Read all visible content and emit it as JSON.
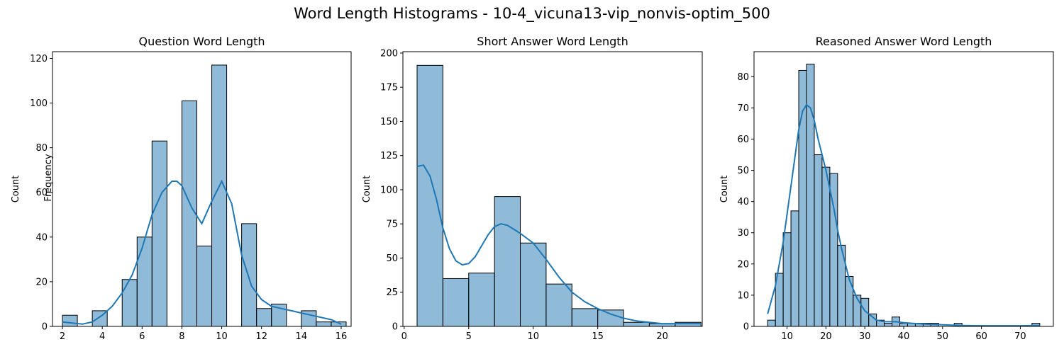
{
  "figure_title": "Word Length Histograms - 10-4_vicuna13-vip_nonvis-optim_500",
  "stray_label": "Frequency",
  "chart_data": [
    {
      "type": "bar",
      "title": "Question Word Length",
      "xlabel": "",
      "ylabel": "Count",
      "xlim": [
        1.5,
        16.5
      ],
      "ylim": [
        0,
        123
      ],
      "xticks": [
        2,
        4,
        6,
        8,
        10,
        12,
        14,
        16
      ],
      "yticks": [
        0,
        20,
        40,
        60,
        80,
        100,
        120
      ],
      "bins": [
        {
          "x0": 2.0,
          "x1": 2.75,
          "count": 5
        },
        {
          "x0": 2.75,
          "x1": 3.5,
          "count": 0
        },
        {
          "x0": 3.5,
          "x1": 4.25,
          "count": 7
        },
        {
          "x0": 4.25,
          "x1": 5.0,
          "count": 0
        },
        {
          "x0": 5.0,
          "x1": 5.75,
          "count": 21
        },
        {
          "x0": 5.75,
          "x1": 6.5,
          "count": 40
        },
        {
          "x0": 6.5,
          "x1": 7.25,
          "count": 83
        },
        {
          "x0": 7.25,
          "x1": 8.0,
          "count": 0
        },
        {
          "x0": 8.0,
          "x1": 8.75,
          "count": 101
        },
        {
          "x0": 8.75,
          "x1": 9.5,
          "count": 36
        },
        {
          "x0": 9.5,
          "x1": 10.25,
          "count": 117
        },
        {
          "x0": 10.25,
          "x1": 11.0,
          "count": 0
        },
        {
          "x0": 11.0,
          "x1": 11.75,
          "count": 46
        },
        {
          "x0": 11.75,
          "x1": 12.5,
          "count": 8
        },
        {
          "x0": 12.5,
          "x1": 13.25,
          "count": 10
        },
        {
          "x0": 13.25,
          "x1": 14.0,
          "count": 0
        },
        {
          "x0": 14.0,
          "x1": 14.75,
          "count": 7
        },
        {
          "x0": 14.75,
          "x1": 15.5,
          "count": 2
        },
        {
          "x0": 15.5,
          "x1": 16.25,
          "count": 2
        }
      ],
      "kde": {
        "x": [
          2,
          2.5,
          3,
          3.5,
          4,
          4.5,
          5,
          5.5,
          6,
          6.5,
          7,
          7.5,
          7.75,
          8,
          8.5,
          9,
          9.5,
          10,
          10.5,
          11,
          11.5,
          12,
          12.5,
          13,
          13.5,
          14,
          14.5,
          15,
          15.5,
          16
        ],
        "y": [
          2,
          1.5,
          1,
          2,
          5,
          9,
          15,
          23,
          35,
          50,
          60,
          65,
          65,
          63,
          53,
          46,
          56,
          65,
          55,
          32,
          18,
          12,
          9,
          8,
          7,
          6,
          5,
          4,
          3,
          1
        ]
      }
    },
    {
      "type": "bar",
      "title": "Short Answer Word Length",
      "xlabel": "",
      "ylabel": "Count",
      "xlim": [
        -0.1,
        23.1
      ],
      "ylim": [
        0,
        201
      ],
      "xticks": [
        0,
        5,
        10,
        15,
        20
      ],
      "yticks": [
        0,
        25,
        50,
        75,
        100,
        125,
        150,
        175,
        200
      ],
      "bins": [
        {
          "x0": 1,
          "x1": 3,
          "count": 191
        },
        {
          "x0": 3,
          "x1": 5,
          "count": 35
        },
        {
          "x0": 5,
          "x1": 7,
          "count": 39
        },
        {
          "x0": 7,
          "x1": 9,
          "count": 95
        },
        {
          "x0": 9,
          "x1": 11,
          "count": 61
        },
        {
          "x0": 11,
          "x1": 13,
          "count": 31
        },
        {
          "x0": 13,
          "x1": 15,
          "count": 13
        },
        {
          "x0": 15,
          "x1": 17,
          "count": 12
        },
        {
          "x0": 17,
          "x1": 19,
          "count": 3
        },
        {
          "x0": 19,
          "x1": 21,
          "count": 2
        },
        {
          "x0": 21,
          "x1": 23,
          "count": 3
        }
      ],
      "kde": {
        "x": [
          1,
          1.5,
          2,
          2.5,
          3,
          3.5,
          4,
          4.5,
          5,
          5.5,
          6,
          6.5,
          7,
          7.5,
          8,
          8.5,
          9,
          10,
          11,
          12,
          13,
          14,
          15,
          16,
          17,
          18,
          19,
          20,
          21,
          22,
          23
        ],
        "y": [
          117,
          118,
          110,
          93,
          72,
          57,
          48,
          45,
          46,
          51,
          59,
          67,
          73,
          75,
          74,
          71,
          68,
          61,
          49,
          36,
          25,
          18,
          13,
          9,
          6,
          4,
          3,
          2,
          2,
          2,
          2
        ]
      }
    },
    {
      "type": "bar",
      "title": "Reasoned Answer Word Length",
      "xlabel": "",
      "ylabel": "Count",
      "xlim": [
        1.5,
        78.5
      ],
      "ylim": [
        0,
        88
      ],
      "xticks": [
        10,
        20,
        30,
        40,
        50,
        60,
        70
      ],
      "yticks": [
        0,
        10,
        20,
        30,
        40,
        50,
        60,
        70,
        80
      ],
      "bins": [
        {
          "x0": 5,
          "x1": 7,
          "count": 2
        },
        {
          "x0": 7,
          "x1": 9,
          "count": 17
        },
        {
          "x0": 9,
          "x1": 11,
          "count": 30
        },
        {
          "x0": 11,
          "x1": 13,
          "count": 37
        },
        {
          "x0": 13,
          "x1": 15,
          "count": 82
        },
        {
          "x0": 15,
          "x1": 17,
          "count": 84
        },
        {
          "x0": 17,
          "x1": 19,
          "count": 55
        },
        {
          "x0": 19,
          "x1": 21,
          "count": 51
        },
        {
          "x0": 21,
          "x1": 23,
          "count": 49
        },
        {
          "x0": 23,
          "x1": 25,
          "count": 26
        },
        {
          "x0": 25,
          "x1": 27,
          "count": 16
        },
        {
          "x0": 27,
          "x1": 29,
          "count": 10
        },
        {
          "x0": 29,
          "x1": 31,
          "count": 9
        },
        {
          "x0": 31,
          "x1": 33,
          "count": 4
        },
        {
          "x0": 33,
          "x1": 35,
          "count": 2
        },
        {
          "x0": 35,
          "x1": 37,
          "count": 1
        },
        {
          "x0": 37,
          "x1": 39,
          "count": 3
        },
        {
          "x0": 39,
          "x1": 41,
          "count": 1
        },
        {
          "x0": 41,
          "x1": 43,
          "count": 1
        },
        {
          "x0": 43,
          "x1": 45,
          "count": 1
        },
        {
          "x0": 45,
          "x1": 47,
          "count": 1
        },
        {
          "x0": 47,
          "x1": 49,
          "count": 1
        },
        {
          "x0": 49,
          "x1": 51,
          "count": 0
        },
        {
          "x0": 51,
          "x1": 53,
          "count": 0
        },
        {
          "x0": 53,
          "x1": 55,
          "count": 1
        },
        {
          "x0": 55,
          "x1": 57,
          "count": 0
        },
        {
          "x0": 57,
          "x1": 59,
          "count": 0
        },
        {
          "x0": 59,
          "x1": 61,
          "count": 0
        },
        {
          "x0": 61,
          "x1": 63,
          "count": 0
        },
        {
          "x0": 63,
          "x1": 65,
          "count": 0
        },
        {
          "x0": 65,
          "x1": 67,
          "count": 0
        },
        {
          "x0": 67,
          "x1": 69,
          "count": 0
        },
        {
          "x0": 69,
          "x1": 71,
          "count": 0
        },
        {
          "x0": 71,
          "x1": 73,
          "count": 0
        },
        {
          "x0": 73,
          "x1": 75,
          "count": 1
        }
      ],
      "kde": {
        "x": [
          5,
          7,
          9,
          11,
          13,
          14,
          15,
          16,
          17,
          18,
          19,
          20,
          21,
          22,
          23,
          24,
          25,
          26,
          27,
          28,
          29,
          30,
          31,
          32,
          33,
          35,
          38,
          40,
          42,
          45,
          48,
          50,
          55,
          60,
          65,
          70,
          75
        ],
        "y": [
          4,
          13,
          27,
          45,
          63,
          69,
          71,
          70,
          66,
          60,
          55,
          50,
          44,
          38,
          31,
          25,
          20,
          15,
          12,
          9,
          7,
          5,
          4,
          3,
          2,
          1.5,
          1.5,
          1.2,
          1,
          0.8,
          0.6,
          0.5,
          0.3,
          0.2,
          0.2,
          0.2,
          0.3
        ]
      }
    }
  ]
}
